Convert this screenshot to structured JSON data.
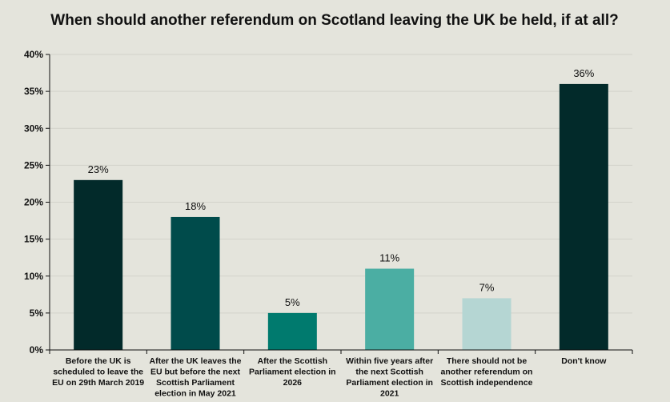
{
  "chart_data": {
    "type": "bar",
    "title": "When should another referendum on Scotland leaving the UK be held, if at all?",
    "xlabel": "",
    "ylabel": "",
    "ylim": [
      0,
      40
    ],
    "y_ticks": [
      "0%",
      "5%",
      "10%",
      "15%",
      "20%",
      "25%",
      "30%",
      "35%",
      "40%"
    ],
    "grid": true,
    "legend": "none",
    "categories": [
      [
        "Before the UK is",
        "scheduled to leave the",
        "EU on 29th March 2019"
      ],
      [
        "After the UK leaves the",
        "EU but before the next",
        "Scottish Parliament",
        "election in May 2021"
      ],
      [
        "After the Scottish",
        "Parliament election in",
        "2026"
      ],
      [
        "Within five years after",
        "the next Scottish",
        "Parliament election in",
        "2021"
      ],
      [
        "There should not be",
        "another referendum on",
        "Scottish independence"
      ],
      [
        "Don't know"
      ]
    ],
    "values": [
      23,
      18,
      5,
      11,
      7,
      36
    ],
    "value_labels": [
      "23%",
      "18%",
      "5%",
      "11%",
      "7%",
      "36%"
    ],
    "colors": [
      "#022a2a",
      "#004b4b",
      "#007a6e",
      "#4baea3",
      "#b5d6d3",
      "#022a2a"
    ]
  }
}
